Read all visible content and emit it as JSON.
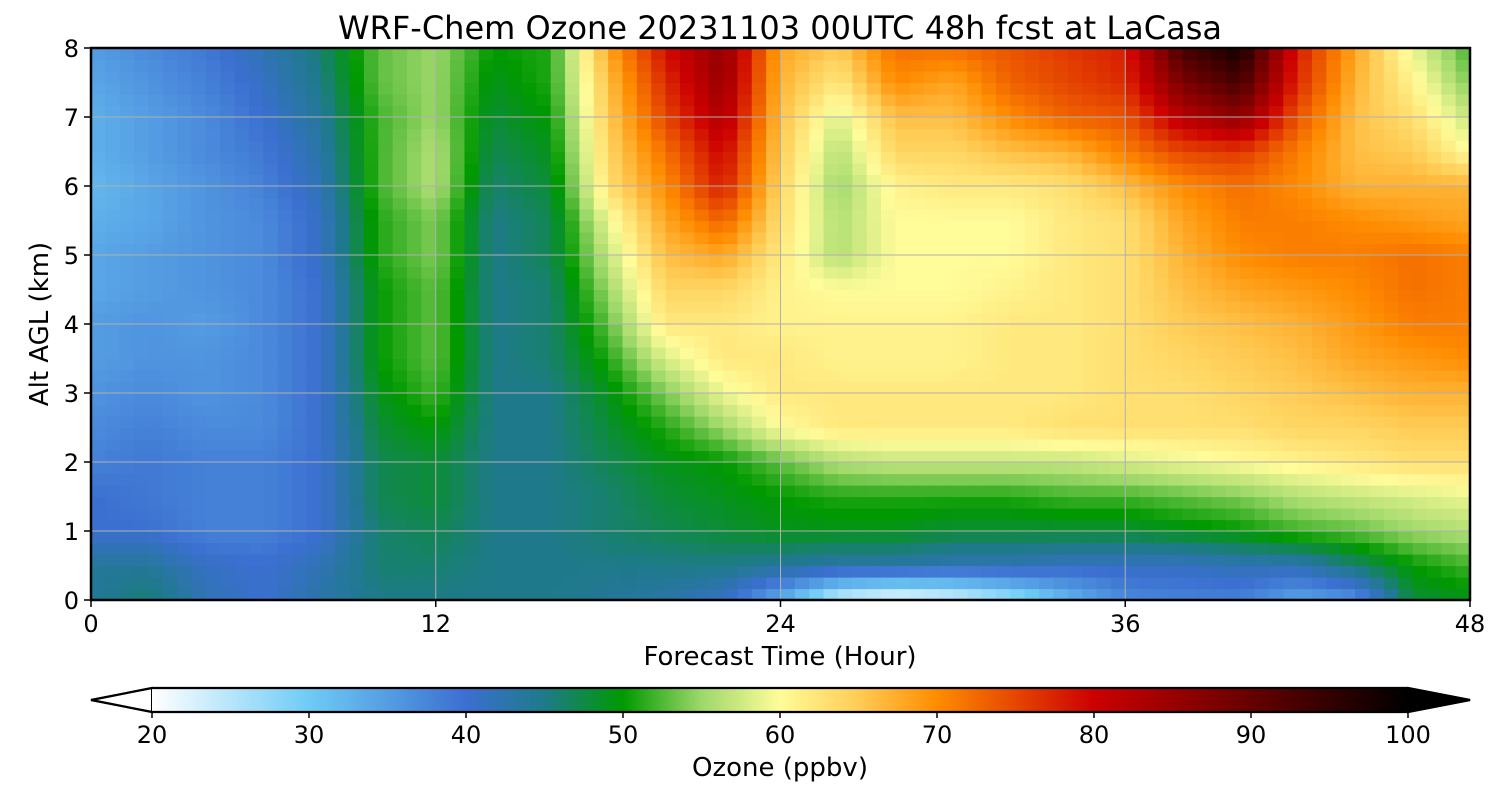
{
  "chart_data": {
    "type": "heatmap",
    "title": "WRF-Chem Ozone  20231103 00UTC 48h fcst at LaCasa",
    "xlabel": "Forecast Time (Hour)",
    "ylabel": "Alt AGL (km)",
    "xlim": [
      0,
      48
    ],
    "ylim": [
      0,
      8
    ],
    "x_ticks": [
      "0",
      "12",
      "24",
      "36",
      "48"
    ],
    "y_ticks": [
      "0",
      "1",
      "2",
      "3",
      "4",
      "5",
      "6",
      "7",
      "8"
    ],
    "grid": true,
    "colorbar": {
      "label": "Ozone  (ppbv)",
      "range": [
        20,
        100
      ],
      "ticks": [
        "20",
        "30",
        "40",
        "50",
        "60",
        "70",
        "80",
        "90",
        "100"
      ],
      "extend": "both",
      "colors": [
        "#ffffff",
        "#6ecbf5",
        "#3b6fd0",
        "#1e7a8a",
        "#009900",
        "#9ed86a",
        "#fffc9a",
        "#ffcc55",
        "#ff8c00",
        "#cc0000",
        "#000000"
      ],
      "color_stops": [
        20,
        30,
        40,
        45,
        50,
        55,
        60,
        65,
        70,
        80,
        100
      ]
    },
    "x_hours": [
      0,
      2,
      4,
      6,
      8,
      10,
      12,
      14,
      16,
      18,
      20,
      22,
      24,
      26,
      28,
      30,
      32,
      34,
      36,
      38,
      40,
      42,
      44,
      46,
      48
    ],
    "altitudes_km": [
      0,
      0.5,
      1,
      1.5,
      2,
      2.5,
      3,
      3.5,
      4,
      4.5,
      5,
      5.5,
      6,
      6.5,
      7,
      7.5,
      8
    ],
    "ozone_ppbv": [
      [
        44,
        46,
        42,
        40,
        43,
        45,
        45,
        45,
        45,
        44,
        43,
        41,
        33,
        23,
        20,
        22,
        26,
        32,
        37,
        38,
        38,
        34,
        36,
        48,
        49
      ],
      [
        44,
        44,
        41,
        40,
        42,
        46,
        46,
        45,
        45,
        45,
        45,
        45,
        44,
        43,
        43,
        42,
        42,
        41,
        41,
        41,
        42,
        42,
        46,
        50,
        52
      ],
      [
        40,
        40,
        38,
        38,
        40,
        46,
        47,
        45,
        45,
        46,
        47,
        48,
        49,
        49,
        49,
        48,
        48,
        48,
        48,
        49,
        50,
        52,
        53,
        55,
        56
      ],
      [
        40,
        39,
        38,
        38,
        40,
        47,
        48,
        45,
        45,
        46,
        48,
        49,
        50,
        51,
        51,
        51,
        51,
        52,
        52,
        53,
        54,
        56,
        57,
        58,
        59
      ],
      [
        38,
        39,
        38,
        38,
        40,
        47,
        48,
        45,
        45,
        47,
        49,
        50,
        53,
        56,
        57,
        57,
        57,
        57,
        58,
        59,
        60,
        61,
        62,
        63,
        63
      ],
      [
        37,
        38,
        37,
        37,
        40,
        48,
        50,
        45,
        45,
        48,
        51,
        55,
        60,
        62,
        62,
        62,
        62,
        63,
        63,
        63,
        63,
        64,
        64,
        65,
        65
      ],
      [
        36,
        37,
        36,
        37,
        40,
        49,
        52,
        45,
        45,
        49,
        54,
        59,
        62,
        62,
        62,
        62,
        62,
        62,
        63,
        63,
        64,
        65,
        66,
        67,
        67
      ],
      [
        35,
        36,
        36,
        37,
        40,
        50,
        53,
        45,
        46,
        51,
        58,
        62,
        62,
        61,
        61,
        61,
        62,
        62,
        63,
        64,
        65,
        66,
        68,
        69,
        70
      ],
      [
        35,
        36,
        35,
        37,
        40,
        50,
        53,
        45,
        46,
        53,
        62,
        62,
        61,
        61,
        61,
        61,
        62,
        62,
        63,
        65,
        66,
        67,
        69,
        71,
        71
      ],
      [
        34,
        35,
        36,
        37,
        40,
        50,
        53,
        45,
        46,
        55,
        64,
        64,
        61,
        60,
        60,
        60,
        61,
        62,
        63,
        66,
        68,
        69,
        70,
        72,
        71
      ],
      [
        34,
        35,
        36,
        37,
        41,
        51,
        54,
        45,
        47,
        57,
        66,
        68,
        62,
        56,
        60,
        60,
        60,
        62,
        63,
        67,
        70,
        71,
        71,
        72,
        71
      ],
      [
        33,
        34,
        36,
        37,
        41,
        51,
        54,
        45,
        47,
        59,
        68,
        73,
        63,
        56,
        60,
        60,
        60,
        62,
        63,
        68,
        71,
        71,
        70,
        69,
        68
      ],
      [
        32,
        34,
        36,
        38,
        42,
        52,
        56,
        46,
        48,
        63,
        70,
        78,
        64,
        55,
        61,
        62,
        62,
        63,
        66,
        70,
        72,
        70,
        67,
        67,
        67
      ],
      [
        33,
        35,
        37,
        39,
        43,
        52,
        56,
        47,
        49,
        64,
        72,
        80,
        65,
        56,
        64,
        64,
        66,
        67,
        71,
        75,
        76,
        71,
        66,
        65,
        60
      ],
      [
        33,
        35,
        37,
        40,
        44,
        52,
        55,
        48,
        50,
        65,
        75,
        83,
        66,
        58,
        66,
        66,
        70,
        73,
        74,
        82,
        86,
        74,
        66,
        63,
        57
      ],
      [
        34,
        36,
        38,
        41,
        45,
        53,
        55,
        49,
        51,
        66,
        77,
        85,
        67,
        62,
        70,
        68,
        73,
        75,
        77,
        88,
        93,
        77,
        67,
        61,
        54
      ],
      [
        35,
        37,
        39,
        42,
        46,
        53,
        55,
        50,
        51,
        68,
        79,
        86,
        68,
        65,
        72,
        72,
        74,
        76,
        78,
        93,
        98,
        78,
        68,
        59,
        52
      ]
    ]
  }
}
